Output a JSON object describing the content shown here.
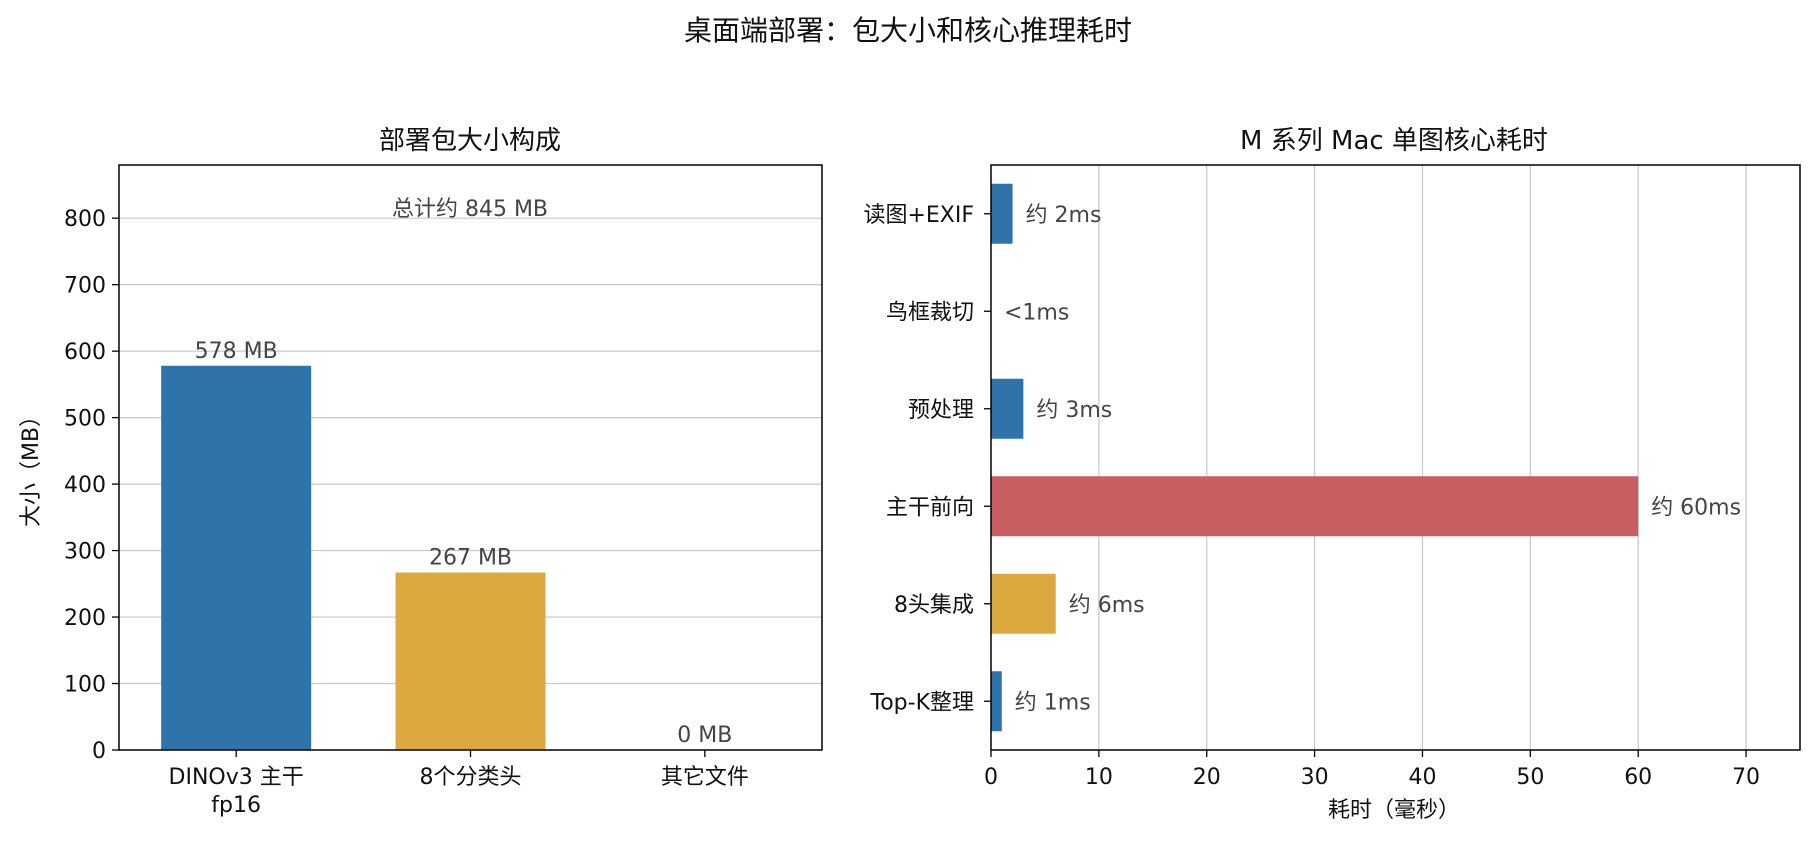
{
  "suptitle": "桌面端部署：包大小和核心推理耗时",
  "chart_data": [
    {
      "type": "bar",
      "title": "部署包大小构成",
      "categories": [
        "DINOv3 主干\nfp16",
        "8个分类头",
        "其它文件"
      ],
      "values": [
        578,
        267,
        0
      ],
      "value_labels": [
        "578 MB",
        "267 MB",
        "0 MB"
      ],
      "colors": [
        "#2e74aa",
        "#dba93f",
        "#2e74aa"
      ],
      "ylabel": "大小（MB）",
      "ylim": [
        0,
        880
      ],
      "yticks": [
        0,
        100,
        200,
        300,
        400,
        500,
        600,
        700,
        800
      ],
      "annotation": "总计约 845 MB",
      "grid": "y"
    },
    {
      "type": "bar",
      "orientation": "horizontal",
      "title": "M 系列 Mac 单图核心耗时",
      "categories": [
        "读图+EXIF",
        "鸟框裁切",
        "预处理",
        "主干前向",
        "8头集成",
        "Top-K整理"
      ],
      "values": [
        2,
        0,
        3,
        60,
        6,
        1
      ],
      "value_labels": [
        "约 2ms",
        "<1ms",
        "约 3ms",
        "约 60ms",
        "约 6ms",
        "约 1ms"
      ],
      "colors": [
        "#2e74aa",
        "#2e74aa",
        "#2e74aa",
        "#c95e63",
        "#dba93f",
        "#2e74aa"
      ],
      "xlabel": "耗时（毫秒）",
      "xlim": [
        0,
        75
      ],
      "xticks": [
        0,
        10,
        20,
        30,
        40,
        50,
        60,
        70
      ],
      "grid": "x"
    }
  ]
}
